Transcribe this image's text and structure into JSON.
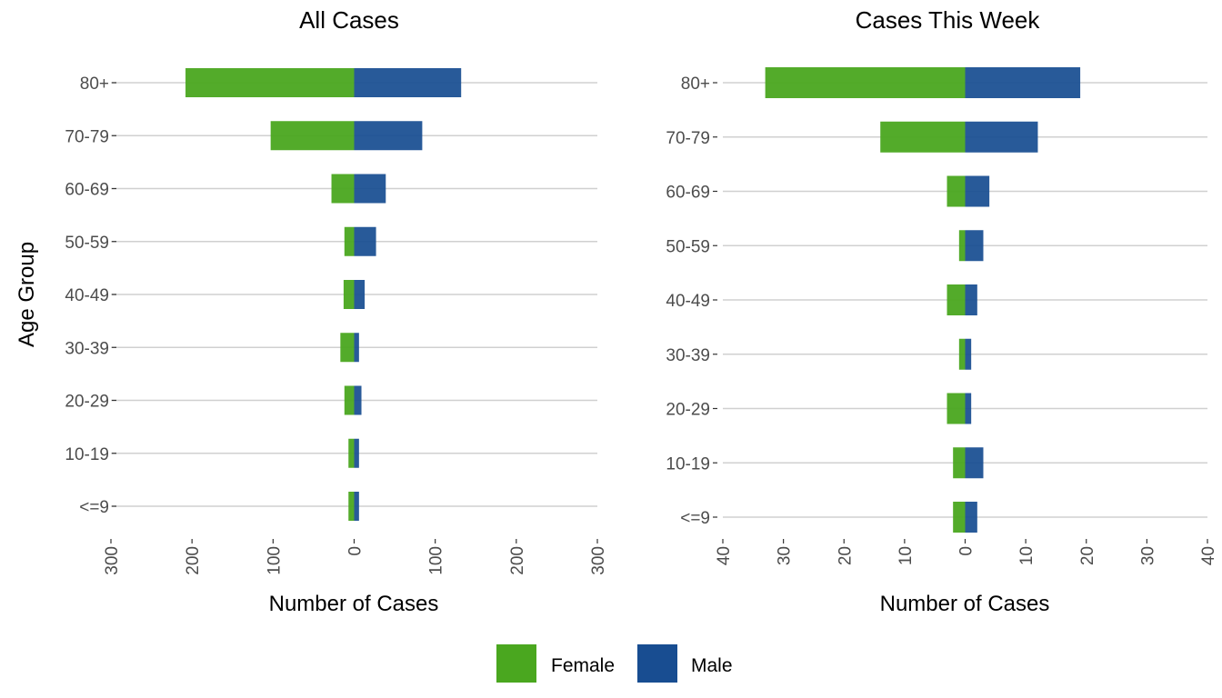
{
  "legend": {
    "items": [
      {
        "label": "Female",
        "color": "#4aa71f"
      },
      {
        "label": "Male",
        "color": "#184d91"
      }
    ]
  },
  "chart_data": [
    {
      "type": "bar",
      "orientation": "horizontal",
      "layout": "diverging (population pyramid)",
      "title": "All Cases",
      "xlabel": "Number of Cases",
      "ylabel": "Age Group",
      "categories": [
        "<=9",
        "10-19",
        "20-29",
        "30-39",
        "40-49",
        "50-59",
        "60-69",
        "70-79",
        "80+"
      ],
      "series": [
        {
          "name": "Female",
          "color": "#4aa71f",
          "values": [
            7,
            7,
            12,
            17,
            13,
            12,
            28,
            103,
            208
          ]
        },
        {
          "name": "Male",
          "color": "#184d91",
          "values": [
            6,
            6,
            9,
            6,
            13,
            27,
            39,
            84,
            132
          ]
        }
      ],
      "xlim": [
        -300,
        300
      ],
      "xticks": [
        -300,
        -200,
        -100,
        0,
        100,
        200,
        300
      ],
      "xtick_labels": [
        "300",
        "200",
        "100",
        "0",
        "100",
        "200",
        "300"
      ],
      "grid": "horizontal major"
    },
    {
      "type": "bar",
      "orientation": "horizontal",
      "layout": "diverging (population pyramid)",
      "title": "Cases This Week",
      "xlabel": "Number of Cases",
      "ylabel": "",
      "categories": [
        "<=9",
        "10-19",
        "20-29",
        "30-39",
        "40-49",
        "50-59",
        "60-69",
        "70-79",
        "80+"
      ],
      "series": [
        {
          "name": "Female",
          "color": "#4aa71f",
          "values": [
            2,
            2,
            3,
            1,
            3,
            1,
            3,
            14,
            33
          ]
        },
        {
          "name": "Male",
          "color": "#184d91",
          "values": [
            2,
            3,
            1,
            1,
            2,
            3,
            4,
            12,
            19
          ]
        }
      ],
      "xlim": [
        -40,
        40
      ],
      "xticks": [
        -40,
        -30,
        -20,
        -10,
        0,
        10,
        20,
        30,
        40
      ],
      "xtick_labels": [
        "40",
        "30",
        "20",
        "10",
        "0",
        "10",
        "20",
        "30",
        "40"
      ],
      "grid": "horizontal major"
    }
  ]
}
